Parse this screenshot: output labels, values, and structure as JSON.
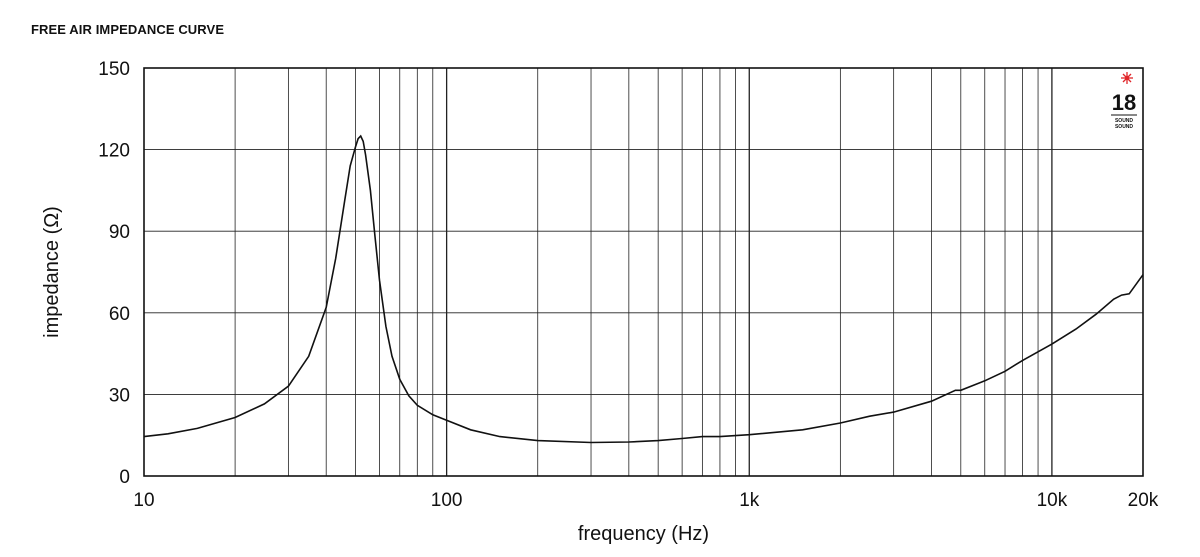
{
  "title": "FREE AIR IMPEDANCE CURVE",
  "logo": {
    "number": "18",
    "line1": "SOUND",
    "line2": "SOUND",
    "star_color": "#e0262a"
  },
  "chart_data": {
    "type": "line",
    "title": "FREE AIR IMPEDANCE CURVE",
    "xlabel": "frequency (Hz)",
    "ylabel": "impedance (Ω)",
    "xscale": "log",
    "xlim": [
      10,
      20000
    ],
    "ylim": [
      0,
      150
    ],
    "grid": true,
    "x_tick_labels": [
      {
        "value": 10,
        "label": "10"
      },
      {
        "value": 100,
        "label": "100"
      },
      {
        "value": 1000,
        "label": "1k"
      },
      {
        "value": 10000,
        "label": "10k"
      },
      {
        "value": 20000,
        "label": "20k"
      }
    ],
    "y_ticks": [
      0,
      30,
      60,
      90,
      120,
      150
    ],
    "line_color": "#111111",
    "series": [
      {
        "x": [
          10,
          12,
          15,
          20,
          25,
          30,
          35,
          40,
          43,
          46,
          48,
          50,
          51,
          52,
          53,
          54,
          56,
          58,
          60,
          63,
          66,
          70,
          75,
          80,
          90,
          100,
          120,
          150,
          200,
          300,
          400,
          500,
          600,
          700,
          800,
          1000,
          1500,
          2000,
          2500,
          3000,
          4000,
          4800,
          5000,
          6000,
          7000,
          8000,
          10000,
          12000,
          14000,
          16000,
          17000,
          18000,
          20000
        ],
        "y": [
          14.5,
          15.5,
          17.5,
          21.5,
          26.5,
          33,
          44,
          62,
          80,
          101,
          114,
          121,
          124,
          125,
          123,
          118,
          105,
          88,
          72,
          55,
          44,
          35.5,
          29.5,
          26,
          22.5,
          20.5,
          17,
          14.5,
          13,
          12.3,
          12.5,
          13,
          13.8,
          14.5,
          14.5,
          15.2,
          17,
          19.5,
          22,
          23.5,
          27.5,
          31.5,
          31.5,
          35,
          38.5,
          42.5,
          48.5,
          54,
          59.5,
          65,
          66.5,
          67,
          74
        ]
      }
    ]
  }
}
